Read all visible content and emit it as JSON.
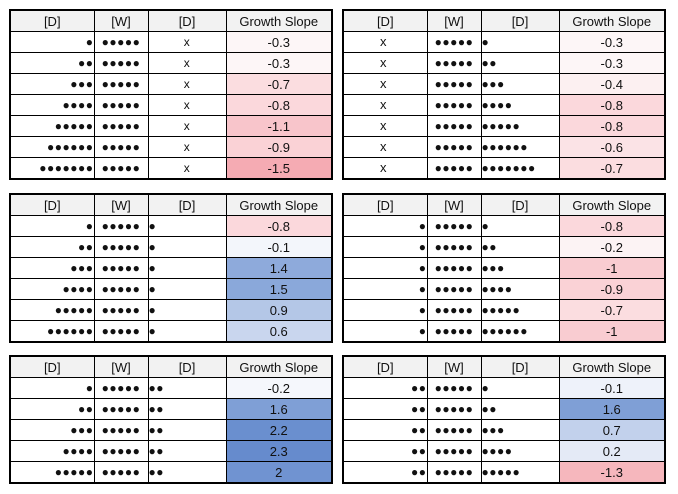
{
  "headers": [
    "[D]",
    "[W]",
    "[D]",
    "Growth Slope"
  ],
  "tables": [
    {
      "rows": [
        {
          "d1": 1,
          "w": 5,
          "d2": "x",
          "slope": "-0.3",
          "color": "#fdf6f7"
        },
        {
          "d1": 2,
          "w": 5,
          "d2": "x",
          "slope": "-0.3",
          "color": "#fdf6f7"
        },
        {
          "d1": 3,
          "w": 5,
          "d2": "x",
          "slope": "-0.7",
          "color": "#fbdde0"
        },
        {
          "d1": 4,
          "w": 5,
          "d2": "x",
          "slope": "-0.8",
          "color": "#fbd8dc"
        },
        {
          "d1": 5,
          "w": 5,
          "d2": "x",
          "slope": "-1.1",
          "color": "#f8c5cb"
        },
        {
          "d1": 6,
          "w": 5,
          "d2": "x",
          "slope": "-0.9",
          "color": "#fad2d6"
        },
        {
          "d1": 7,
          "w": 5,
          "d2": "x",
          "slope": "-1.5",
          "color": "#f5abb3"
        }
      ]
    },
    {
      "rows": [
        {
          "d1": "x",
          "w": 5,
          "d2": 1,
          "slope": "-0.3",
          "color": "#fdf6f7"
        },
        {
          "d1": "x",
          "w": 5,
          "d2": 2,
          "slope": "-0.3",
          "color": "#fdf6f7"
        },
        {
          "d1": "x",
          "w": 5,
          "d2": 3,
          "slope": "-0.4",
          "color": "#fcf0f1"
        },
        {
          "d1": "x",
          "w": 5,
          "d2": 4,
          "slope": "-0.8",
          "color": "#fbd8dc"
        },
        {
          "d1": "x",
          "w": 5,
          "d2": 5,
          "slope": "-0.8",
          "color": "#fbd8dc"
        },
        {
          "d1": "x",
          "w": 5,
          "d2": 6,
          "slope": "-0.6",
          "color": "#fbe3e6"
        },
        {
          "d1": "x",
          "w": 5,
          "d2": 7,
          "slope": "-0.7",
          "color": "#fbdde0"
        }
      ]
    },
    {
      "rows": [
        {
          "d1": 1,
          "w": 5,
          "d2": 1,
          "slope": "-0.8",
          "color": "#fbd8dc"
        },
        {
          "d1": 2,
          "w": 5,
          "d2": 1,
          "slope": "-0.1",
          "color": "#f3f6fb"
        },
        {
          "d1": 3,
          "w": 5,
          "d2": 1,
          "slope": "1.4",
          "color": "#8eaadb"
        },
        {
          "d1": 4,
          "w": 5,
          "d2": 1,
          "slope": "1.5",
          "color": "#8aa8da"
        },
        {
          "d1": 5,
          "w": 5,
          "d2": 1,
          "slope": "0.9",
          "color": "#b4c7e7"
        },
        {
          "d1": 6,
          "w": 5,
          "d2": 1,
          "slope": "0.6",
          "color": "#c9d6ee"
        }
      ]
    },
    {
      "rows": [
        {
          "d1": 1,
          "w": 5,
          "d2": 1,
          "slope": "-0.8",
          "color": "#fbd8dc"
        },
        {
          "d1": 1,
          "w": 5,
          "d2": 2,
          "slope": "-0.2",
          "color": "#fcf3f4"
        },
        {
          "d1": 1,
          "w": 5,
          "d2": 3,
          "slope": "-1",
          "color": "#f9ccd1"
        },
        {
          "d1": 1,
          "w": 5,
          "d2": 4,
          "slope": "-0.9",
          "color": "#fad2d6"
        },
        {
          "d1": 1,
          "w": 5,
          "d2": 5,
          "slope": "-0.7",
          "color": "#fbdde0"
        },
        {
          "d1": 1,
          "w": 5,
          "d2": 6,
          "slope": "-1",
          "color": "#f9ccd1"
        }
      ]
    },
    {
      "rows": [
        {
          "d1": 1,
          "w": 5,
          "d2": 2,
          "slope": "-0.2",
          "color": "#f5f7fc"
        },
        {
          "d1": 2,
          "w": 5,
          "d2": 2,
          "slope": "1.6",
          "color": "#7f9fd6"
        },
        {
          "d1": 3,
          "w": 5,
          "d2": 2,
          "slope": "2.2",
          "color": "#6a8fcf"
        },
        {
          "d1": 4,
          "w": 5,
          "d2": 2,
          "slope": "2.3",
          "color": "#668bcd"
        },
        {
          "d1": 5,
          "w": 5,
          "d2": 2,
          "slope": "2",
          "color": "#7093d1"
        }
      ]
    },
    {
      "rows": [
        {
          "d1": 2,
          "w": 5,
          "d2": 1,
          "slope": "-0.1",
          "color": "#eef2fa"
        },
        {
          "d1": 2,
          "w": 5,
          "d2": 2,
          "slope": "1.6",
          "color": "#7f9fd6"
        },
        {
          "d1": 2,
          "w": 5,
          "d2": 3,
          "slope": "0.7",
          "color": "#c2d1ec"
        },
        {
          "d1": 2,
          "w": 5,
          "d2": 4,
          "slope": "0.2",
          "color": "#e4eaf6"
        },
        {
          "d1": 2,
          "w": 5,
          "d2": 5,
          "slope": "-1.3",
          "color": "#f6b7bd"
        }
      ]
    }
  ]
}
